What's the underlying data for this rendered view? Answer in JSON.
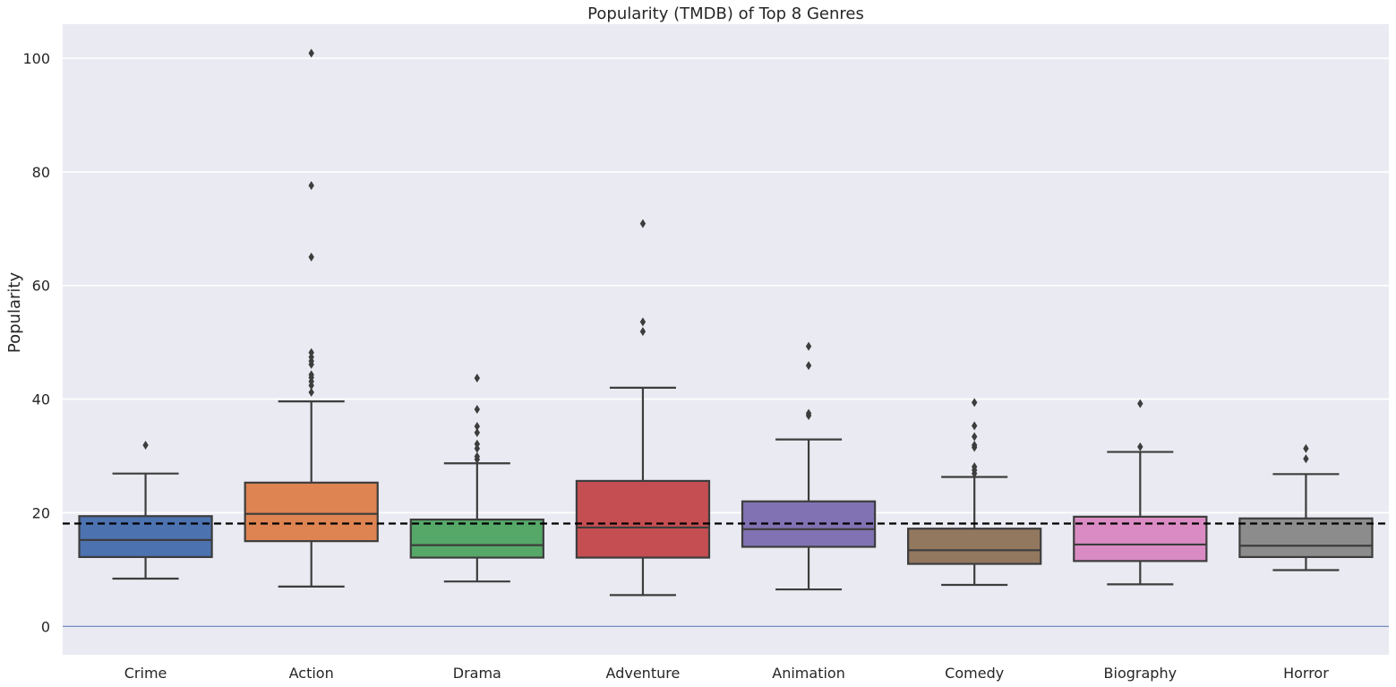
{
  "chart_data": {
    "type": "box",
    "title": "Popularity (TMDB) of Top 8 Genres",
    "xlabel": "",
    "ylabel": "Popularity",
    "ylim": [
      -5,
      106
    ],
    "yticks": [
      0,
      20,
      40,
      60,
      80,
      100
    ],
    "grid": true,
    "reference_lines": [
      {
        "y": 18.1,
        "style": "dashed",
        "color": "#000000"
      },
      {
        "y": 0,
        "style": "solid",
        "color": "#4c6bab"
      }
    ],
    "categories": [
      "Crime",
      "Action",
      "Drama",
      "Adventure",
      "Animation",
      "Comedy",
      "Biography",
      "Horror"
    ],
    "boxes": [
      {
        "name": "Crime",
        "color": "#4c72b0",
        "whisker_low": 8.4,
        "q1": 12.2,
        "median": 15.2,
        "q3": 19.4,
        "whisker_high": 26.9,
        "outliers": [
          31.9
        ]
      },
      {
        "name": "Action",
        "color": "#dd8452",
        "whisker_low": 7.0,
        "q1": 15.0,
        "median": 19.8,
        "q3": 25.3,
        "whisker_high": 39.6,
        "outliers": [
          41.2,
          42.4,
          43.1,
          43.8,
          44.3,
          46.1,
          46.7,
          47.4,
          48.2,
          65.0,
          77.6,
          100.9
        ]
      },
      {
        "name": "Drama",
        "color": "#55a868",
        "whisker_low": 7.9,
        "q1": 12.1,
        "median": 14.3,
        "q3": 18.8,
        "whisker_high": 28.7,
        "outliers": [
          29.4,
          29.9,
          31.3,
          32.1,
          34.1,
          35.2,
          38.2,
          43.7
        ]
      },
      {
        "name": "Adventure",
        "color": "#c44e52",
        "whisker_low": 5.5,
        "q1": 12.1,
        "median": 17.4,
        "q3": 25.6,
        "whisker_high": 42.0,
        "outliers": [
          51.9,
          53.6,
          70.9
        ]
      },
      {
        "name": "Animation",
        "color": "#8172b3",
        "whisker_low": 6.5,
        "q1": 14.0,
        "median": 17.1,
        "q3": 22.0,
        "whisker_high": 32.9,
        "outliers": [
          37.1,
          37.5,
          45.9,
          49.3
        ]
      },
      {
        "name": "Comedy",
        "color": "#937860",
        "whisker_low": 7.3,
        "q1": 11.0,
        "median": 13.4,
        "q3": 17.2,
        "whisker_high": 26.3,
        "outliers": [
          26.9,
          27.5,
          28.1,
          31.5,
          31.9,
          33.4,
          35.3,
          39.4
        ]
      },
      {
        "name": "Biography",
        "color": "#da8bc3",
        "whisker_low": 7.4,
        "q1": 11.5,
        "median": 14.4,
        "q3": 19.3,
        "whisker_high": 30.7,
        "outliers": [
          31.6,
          39.2
        ]
      },
      {
        "name": "Horror",
        "color": "#8c8c8c",
        "whisker_low": 9.9,
        "q1": 12.2,
        "median": 14.2,
        "q3": 19.0,
        "whisker_high": 26.8,
        "outliers": [
          29.5,
          31.3
        ]
      }
    ]
  }
}
